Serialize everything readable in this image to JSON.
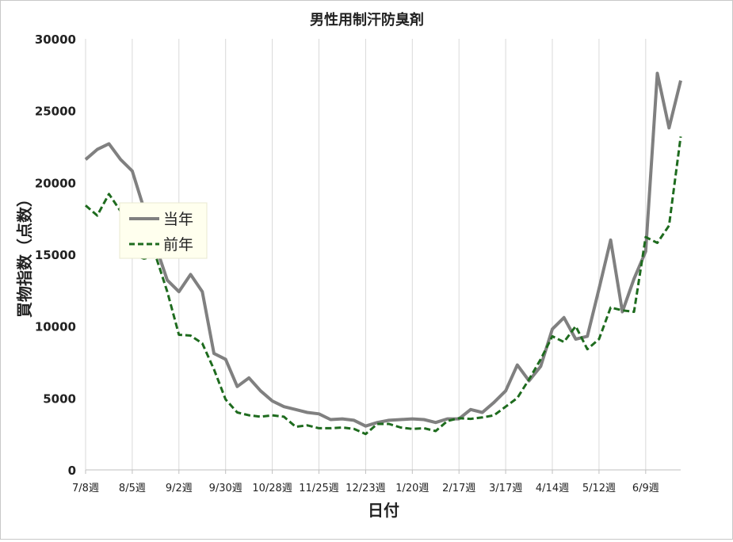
{
  "chart_data": {
    "type": "line",
    "title": "男性用制汗防臭剤",
    "xlabel": "日付",
    "ylabel": "買物指数（点数）",
    "ylim": [
      0,
      30000
    ],
    "yticks": [
      0,
      5000,
      10000,
      15000,
      20000,
      25000,
      30000
    ],
    "x_tick_labels": [
      "7/8週",
      "8/5週",
      "9/2週",
      "9/30週",
      "10/28週",
      "11/25週",
      "12/23週",
      "1/20週",
      "2/17週",
      "3/17週",
      "4/14週",
      "5/12週",
      "6/9週"
    ],
    "grid": "vertical",
    "legend_position": "left-middle",
    "series": [
      {
        "name": "当年",
        "color": "#808080",
        "dash": "solid",
        "values": [
          21600,
          22300,
          22700,
          21600,
          20800,
          18200,
          15600,
          13200,
          12400,
          13600,
          12400,
          8100,
          7700,
          5800,
          6400,
          5500,
          4800,
          4400,
          4200,
          4000,
          3900,
          3500,
          3550,
          3450,
          3050,
          3300,
          3450,
          3500,
          3550,
          3500,
          3300,
          3550,
          3550,
          4200,
          4000,
          4700,
          5500,
          7300,
          6200,
          7200,
          9800,
          10600,
          9100,
          9300,
          12600,
          16000,
          11000,
          13300,
          15200,
          27600,
          23800,
          27100
        ]
      },
      {
        "name": "前年",
        "color": "#1e6b1e",
        "dash": "dashed",
        "values": [
          18400,
          17700,
          19200,
          18000,
          15000,
          14700,
          14900,
          12400,
          9400,
          9350,
          8800,
          7000,
          4900,
          4000,
          3800,
          3700,
          3800,
          3700,
          3000,
          3100,
          2900,
          2900,
          2950,
          2850,
          2500,
          3200,
          3200,
          2950,
          2850,
          2900,
          2700,
          3400,
          3600,
          3550,
          3650,
          3800,
          4400,
          5000,
          6300,
          7700,
          9300,
          8900,
          10000,
          8400,
          9100,
          11300,
          11100,
          11000,
          16200,
          15800,
          17000,
          23200
        ]
      }
    ]
  }
}
